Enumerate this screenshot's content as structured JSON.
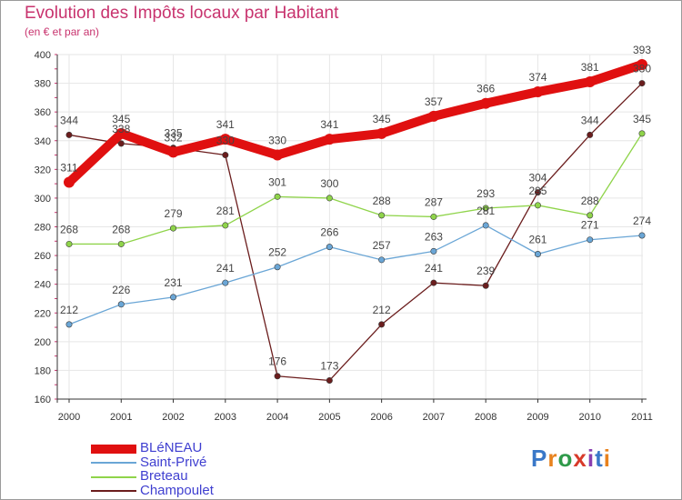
{
  "title": "Evolution des Impôts locaux par Habitant",
  "subtitle": "(en € et par an)",
  "logo": "Proxiti",
  "chart_data": {
    "type": "line",
    "title": "Evolution des Impôts locaux par Habitant",
    "ylabel": "(en € et par an)",
    "xlabel": "",
    "ylim": [
      160,
      400
    ],
    "yticks": [
      160,
      180,
      200,
      220,
      240,
      260,
      280,
      300,
      320,
      340,
      360,
      380,
      400
    ],
    "categories": [
      "2000",
      "2001",
      "2002",
      "2003",
      "2004",
      "2005",
      "2006",
      "2007",
      "2008",
      "2009",
      "2010",
      "2011"
    ],
    "grid": true,
    "series": [
      {
        "name": "Champoulet",
        "color": "#6b1d1d",
        "values": [
          344,
          338,
          335,
          330,
          176,
          173,
          212,
          241,
          239,
          304,
          344,
          380
        ]
      },
      {
        "name": "Saint-Privé",
        "color": "#6aa6d6",
        "values": [
          212,
          226,
          231,
          241,
          252,
          266,
          257,
          263,
          281,
          261,
          271,
          274
        ]
      },
      {
        "name": "Breteau",
        "color": "#8fd44a",
        "values": [
          268,
          268,
          279,
          281,
          301,
          300,
          288,
          287,
          293,
          295,
          288,
          345
        ]
      },
      {
        "name": "BLéNEAU",
        "color": "#e01010",
        "values": [
          311,
          345,
          332,
          341,
          330,
          341,
          345,
          357,
          366,
          374,
          381,
          393
        ]
      }
    ],
    "legend": [
      "BLéNEAU",
      "Saint-Privé",
      "Breteau",
      "Champoulet"
    ]
  }
}
